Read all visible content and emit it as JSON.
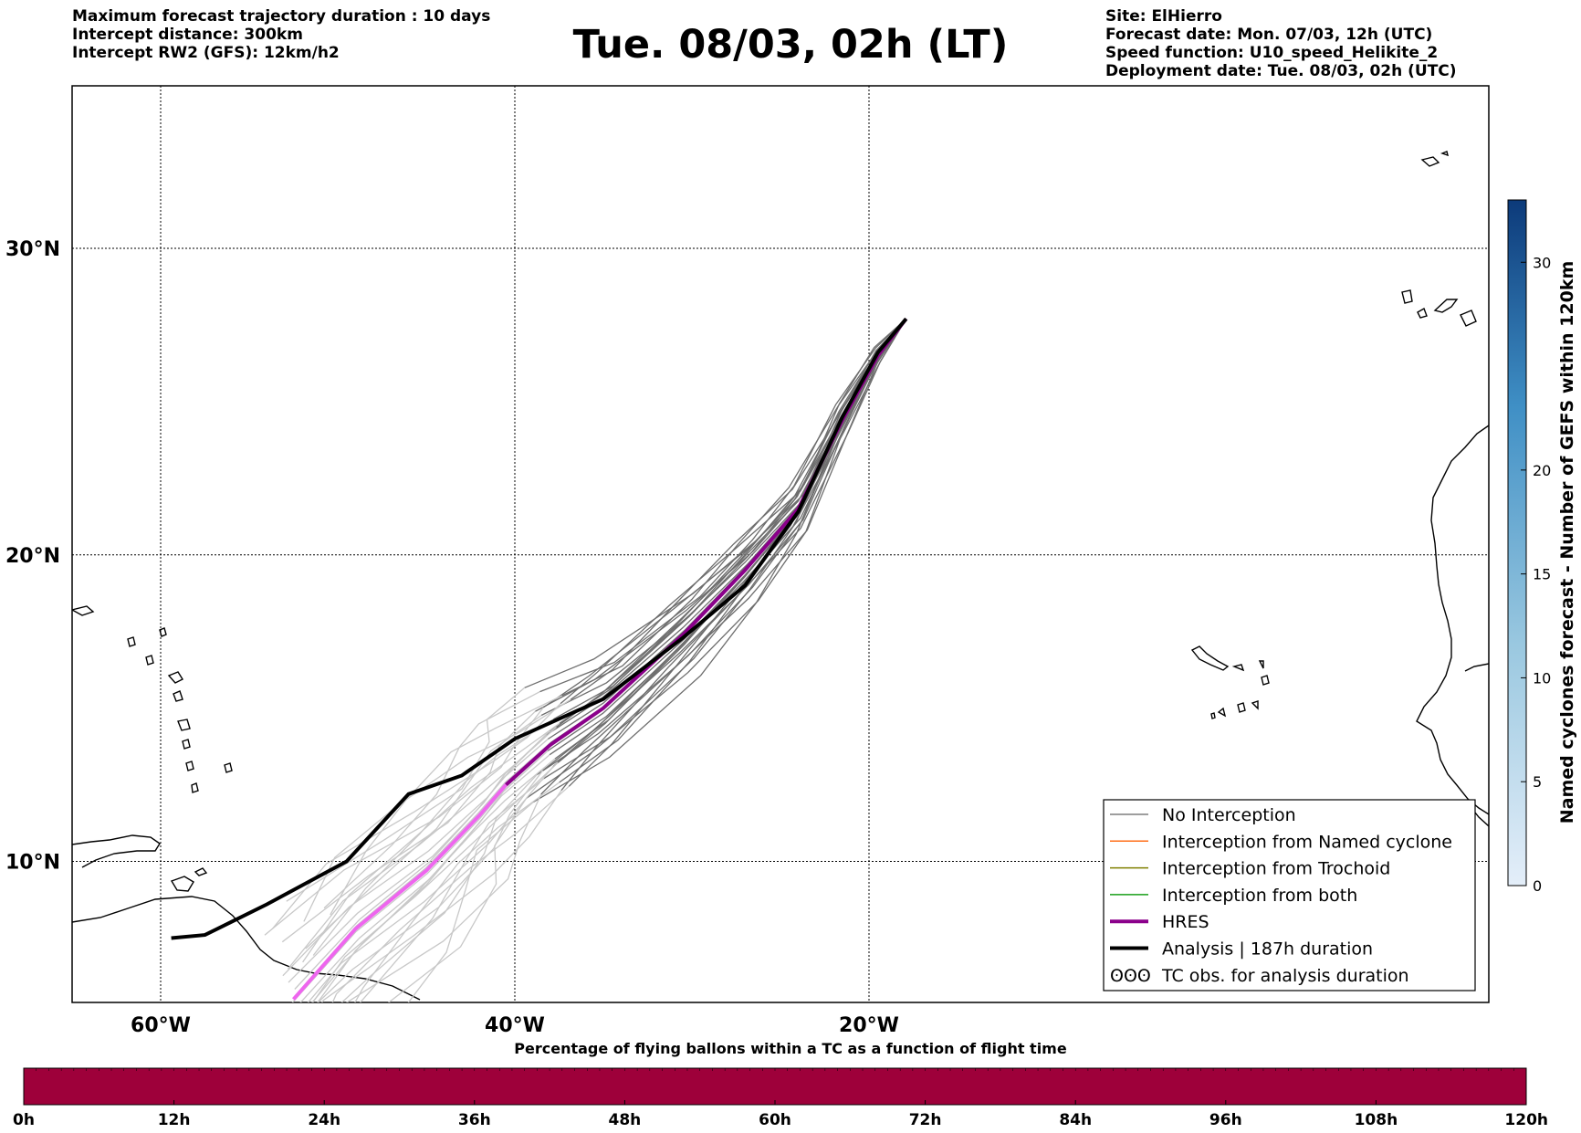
{
  "header": {
    "left_lines": [
      "Maximum forecast trajectory duration : 10 days",
      "Intercept distance: 300km",
      "Intercept RW2 (GFS):  12km/h2"
    ],
    "title": "Tue. 08/03, 02h (LT)",
    "right_lines": [
      "Site: ElHierro",
      "Forecast date: Mon. 07/03, 12h (UTC)",
      "Speed function: U10_speed_Helikite_2",
      "Deployment date: Tue. 08/03, 02h (UTC)"
    ]
  },
  "map": {
    "lon_range": [
      -65,
      15
    ],
    "lat_range": [
      5.4,
      35.3
    ],
    "lat_labels": [
      "10°N",
      "20°N",
      "30°N"
    ],
    "lon_labels": [
      "60°W",
      "40°W",
      "20°W"
    ],
    "gridline_lats": [
      10,
      20,
      30
    ],
    "gridline_lons": [
      -60,
      -40,
      -20
    ]
  },
  "legend": {
    "items": [
      {
        "label": "No Interception",
        "color": "#7f7f7f"
      },
      {
        "label": "Interception from Named cyclone",
        "color": "#ff6f1a"
      },
      {
        "label": "Interception from Trochoid",
        "color": "#808000"
      },
      {
        "label": "Interception from both",
        "color": "#1a9f1a"
      },
      {
        "label": "HRES",
        "color": "#8b008b"
      },
      {
        "label": "Analysis | 187h duration",
        "color": "#000000"
      },
      {
        "label": "TC obs. for analysis duration",
        "color": "#000000",
        "symbol": "ʘʘʘ"
      }
    ]
  },
  "colorbar_right": {
    "label": "Named cyclones forecast - Number of GEFS within 120km",
    "ticks": [
      "0",
      "5",
      "10",
      "15",
      "20",
      "30"
    ]
  },
  "colorbar_bottom": {
    "title": "Percentage of flying ballons within a TC as a function of flight time",
    "ticks": [
      "0h",
      "12h",
      "24h",
      "36h",
      "48h",
      "60h",
      "72h",
      "84h",
      "96h",
      "108h",
      "120h"
    ],
    "fill_color": "#9e003a"
  },
  "chart_data": {
    "type": "line",
    "analysis_track": [
      [
        -17.9,
        27.7
      ],
      [
        -19.5,
        26.6
      ],
      [
        -21.5,
        24.5
      ],
      [
        -24.0,
        21.4
      ],
      [
        -27.0,
        19.0
      ],
      [
        -30.5,
        17.3
      ],
      [
        -35.0,
        15.3
      ],
      [
        -40.0,
        14.0
      ],
      [
        -43.0,
        12.8
      ],
      [
        -46.0,
        12.2
      ],
      [
        -49.5,
        10.0
      ],
      [
        -54.0,
        8.6
      ],
      [
        -57.5,
        7.6
      ],
      [
        -59.4,
        7.5
      ]
    ],
    "hres_track": [
      [
        -17.9,
        27.7
      ],
      [
        -19.5,
        26.5
      ],
      [
        -21.5,
        24.4
      ],
      [
        -24.0,
        21.5
      ],
      [
        -27.0,
        19.5
      ],
      [
        -30.5,
        17.4
      ],
      [
        -35.0,
        15.0
      ],
      [
        -38.0,
        13.8
      ],
      [
        -40.5,
        12.5
      ],
      [
        -42.0,
        11.5
      ],
      [
        -45.0,
        9.7
      ],
      [
        -49.0,
        7.8
      ],
      [
        -52.5,
        5.5
      ]
    ],
    "hres_color_late": "#ee66ee"
  }
}
